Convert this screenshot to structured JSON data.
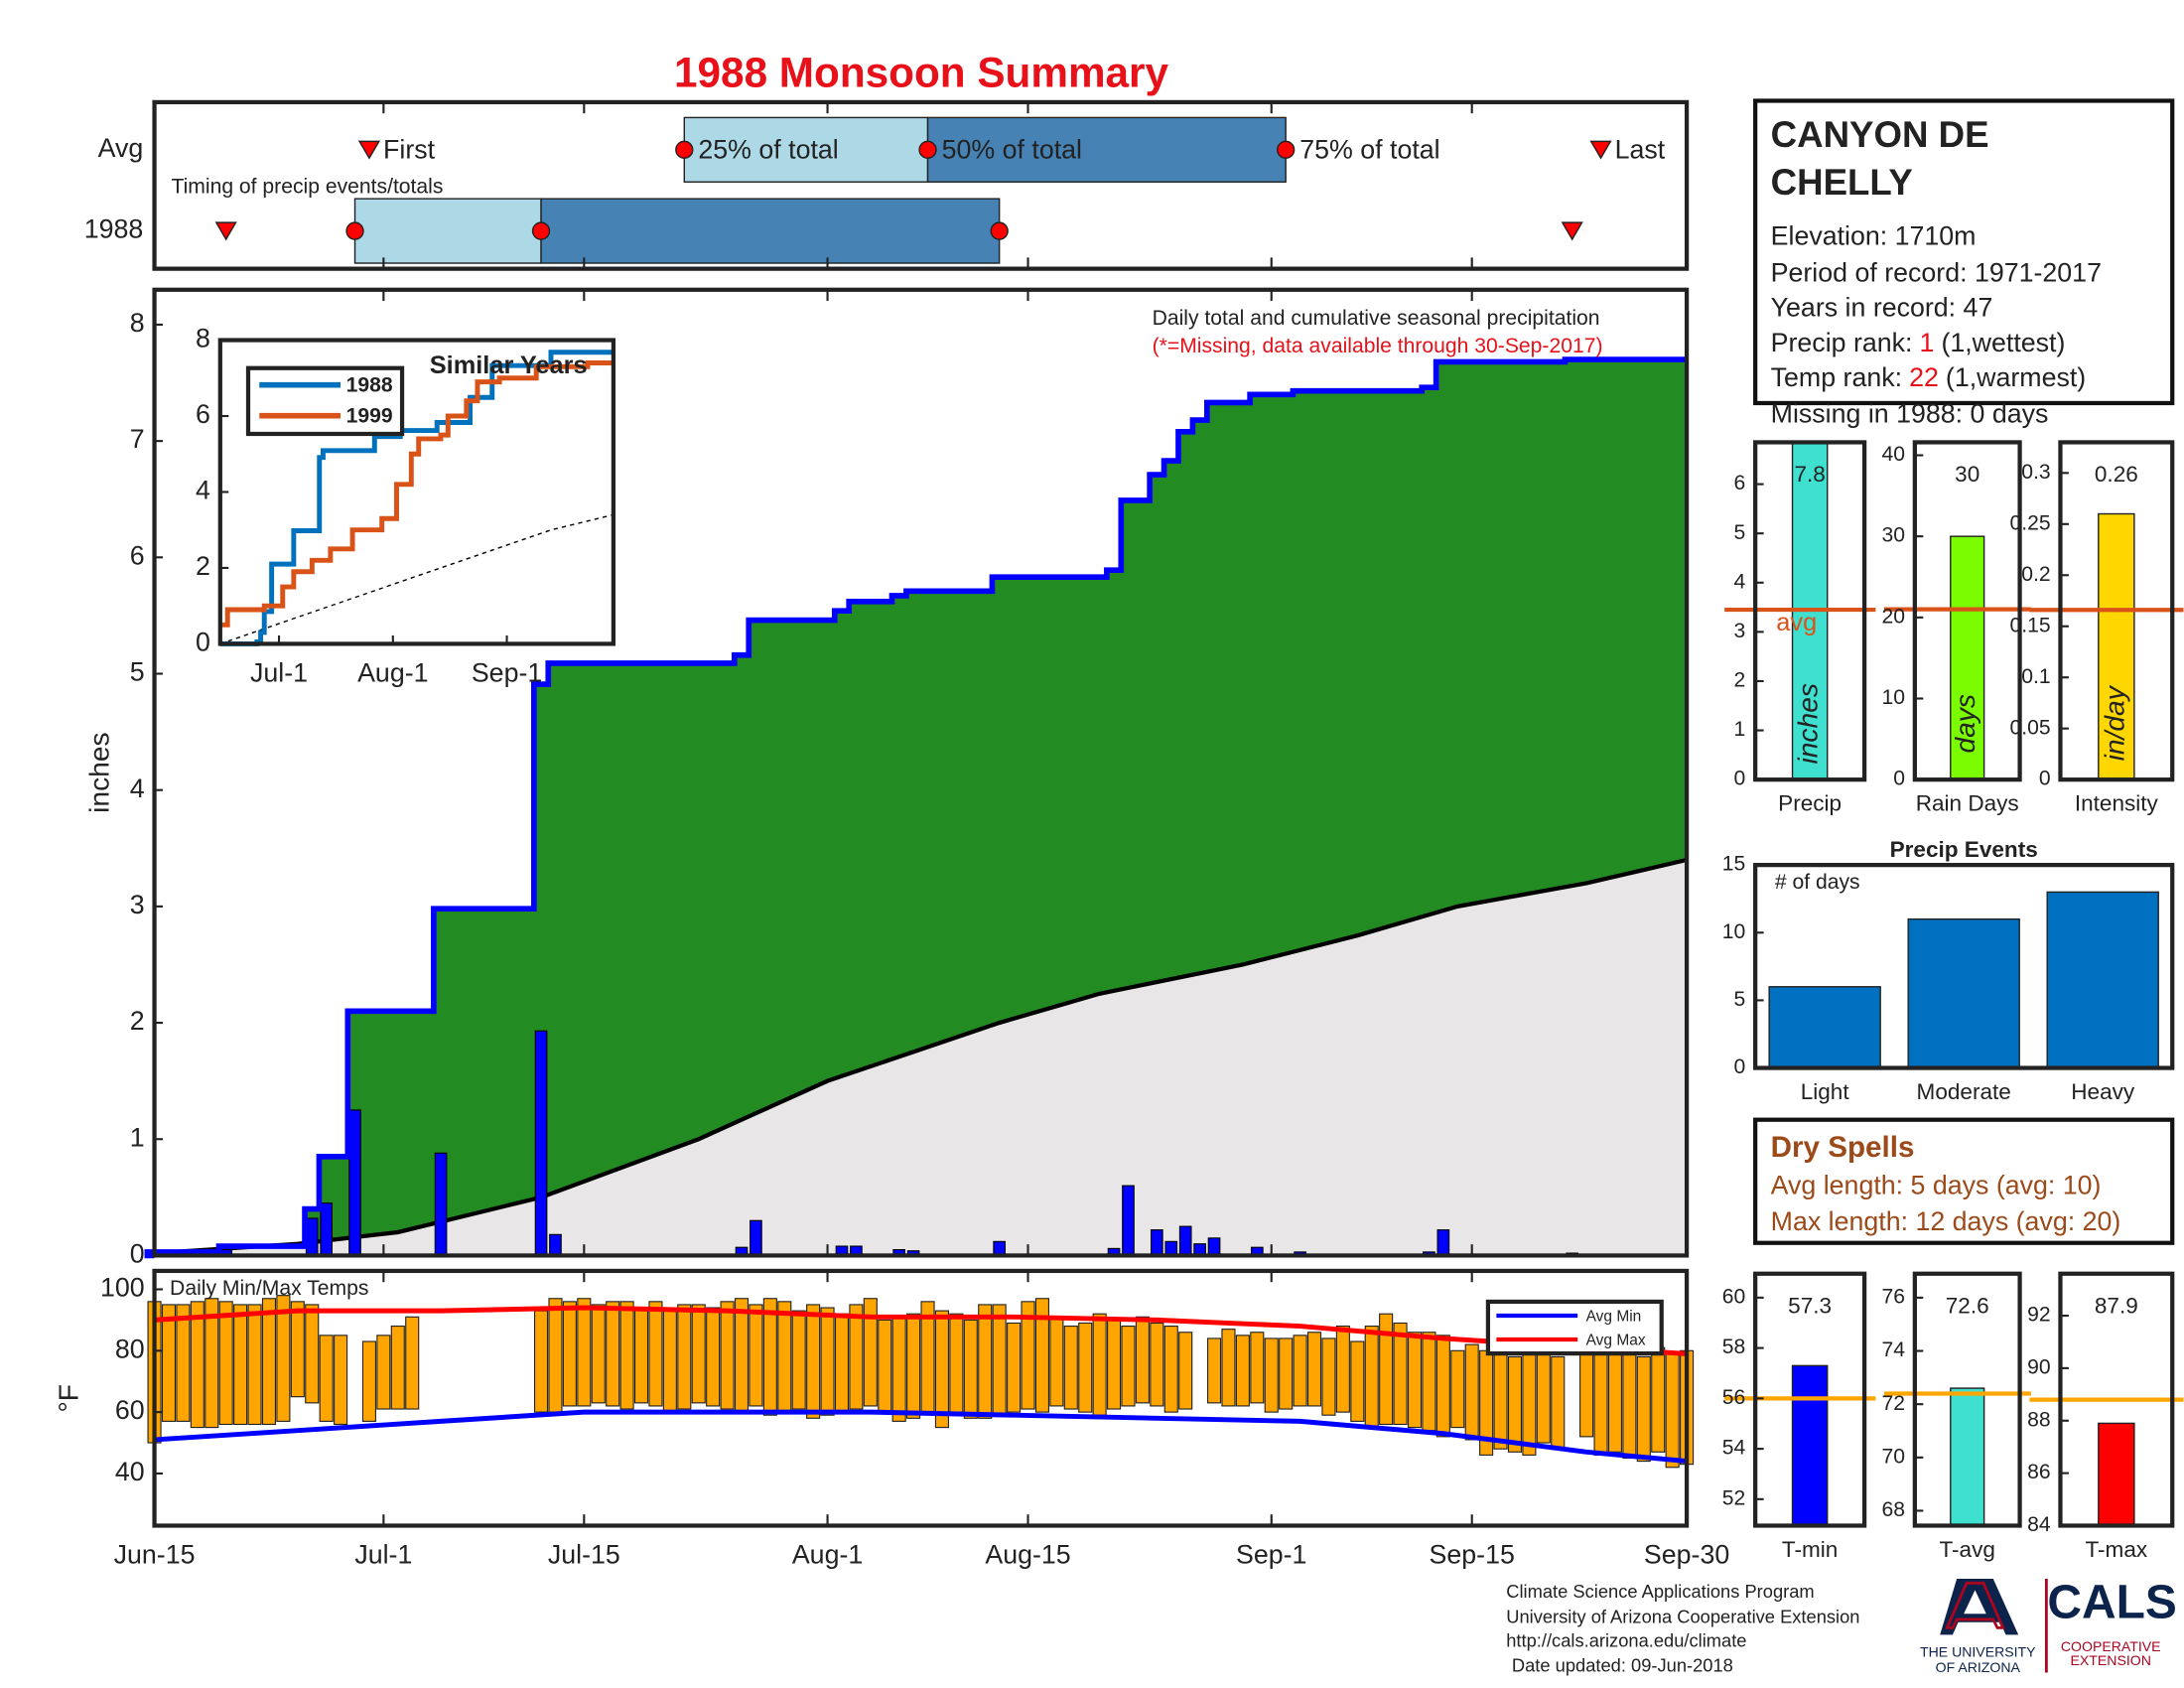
{
  "title": "1988 Monsoon Summary",
  "station": {
    "name": [
      "CANYON DE",
      "CHELLY"
    ],
    "elevation": "Elevation: 1710m",
    "period": "Period of record: 1971-2017",
    "years": "Years in record: 47",
    "precip_rank": {
      "label": "Precip rank:",
      "rank": "1",
      "note": "(1,wettest)"
    },
    "temp_rank": {
      "label": "Temp rank:",
      "rank": "22",
      "note": "(1,warmest)"
    },
    "missing": "Missing in 1988: 0 days"
  },
  "dry_spells": {
    "title": "Dry Spells",
    "lines": [
      "Avg length: 5 days (avg: 10)",
      "Max length: 12 days (avg: 20)"
    ]
  },
  "footer": [
    "Climate Science Applications Program",
    "University of Arizona Cooperative Extension",
    "http://cals.arizona.edu/climate",
    "Date updated: 09-Jun-2018"
  ],
  "logos": {
    "university": [
      "THE UNIVERSITY",
      "OF ARIZONA"
    ],
    "cals": "CALS",
    "extension": [
      "COOPERATIVE",
      "EXTENSION"
    ]
  },
  "chart_data": [
    {
      "type": "timing",
      "title": "Timing of precip events/totals",
      "xlim": [
        0,
        107
      ],
      "labels": {
        "first": "First",
        "p25": "25% of total",
        "p50": "50% of total",
        "p75": "75% of total",
        "last": "Last"
      },
      "rows": [
        {
          "label": "Avg",
          "first": 15,
          "p25": 37,
          "p50": 54,
          "p75": 79,
          "last": 101
        },
        {
          "label": "1988",
          "first": 5,
          "p25": 14,
          "p50": 27,
          "p75": 59,
          "last": 99
        }
      ],
      "colors": {
        "light": "#add8e6",
        "dark": "#4682b4",
        "marker": "#ff0000"
      }
    },
    {
      "type": "precip",
      "title": "Daily total and cumulative seasonal precipitation",
      "subtitle": "(*=Missing, data available through 30-Sep-2017)",
      "ylabel": "inches",
      "xlim": [
        0,
        107
      ],
      "ylim": [
        0,
        8.3
      ],
      "yticks": [
        0,
        1,
        2,
        3,
        4,
        5,
        6,
        7,
        8
      ],
      "daily": {
        "color": "#0000ff",
        "x": [
          0,
          5,
          11,
          12,
          14,
          20,
          27,
          28,
          41,
          42,
          48,
          49,
          52,
          53,
          59,
          67,
          68,
          70,
          71,
          72,
          73,
          74,
          77,
          80,
          89,
          90,
          99
        ],
        "values": [
          0.03,
          0.05,
          0.32,
          0.45,
          1.25,
          0.88,
          1.93,
          0.18,
          0.07,
          0.3,
          0.08,
          0.08,
          0.05,
          0.04,
          0.12,
          0.06,
          0.6,
          0.22,
          0.12,
          0.25,
          0.1,
          0.15,
          0.07,
          0.03,
          0.03,
          0.22,
          0.02
        ]
      },
      "cumulative_color": "#0000ff",
      "above_color": "#228b22",
      "average": {
        "color": "#000000",
        "fill": "#e8e6e6",
        "x": [
          0,
          10,
          17,
          27,
          38,
          47,
          53,
          59,
          66,
          76,
          84,
          91,
          100,
          107
        ],
        "values": [
          0.02,
          0.1,
          0.2,
          0.5,
          1.0,
          1.5,
          1.75,
          2.0,
          2.25,
          2.5,
          2.75,
          3.0,
          3.2,
          3.4
        ]
      }
    },
    {
      "type": "line",
      "title": "Similar Years",
      "xlim": [
        0,
        107
      ],
      "ylim": [
        0,
        8
      ],
      "yticks": [
        0,
        2,
        4,
        6,
        8
      ],
      "xticks": [
        {
          "value": 16,
          "label": "Jul-1"
        },
        {
          "value": 47,
          "label": "Aug-1"
        },
        {
          "value": 78,
          "label": "Sep-1"
        }
      ],
      "series": [
        {
          "name": "1988",
          "color": "#0072bd",
          "x": [
            0,
            10,
            11,
            12,
            14,
            20,
            27,
            28,
            42,
            49,
            59,
            68,
            74,
            90
          ],
          "values": [
            0,
            0.05,
            0.3,
            0.85,
            2.1,
            2.98,
            4.91,
            5.09,
            5.46,
            5.62,
            5.83,
            6.49,
            7.33,
            7.68
          ]
        },
        {
          "name": "1999",
          "color": "#d95319",
          "x": [
            0,
            2,
            12,
            17,
            20,
            25,
            30,
            36,
            44,
            48,
            52,
            54,
            60,
            62,
            67,
            70,
            76,
            86,
            100
          ],
          "values": [
            0.5,
            0.9,
            1.0,
            1.5,
            1.9,
            2.2,
            2.5,
            3.0,
            3.3,
            4.2,
            5.0,
            5.4,
            5.5,
            6.0,
            6.4,
            6.9,
            7.0,
            7.3,
            7.4
          ]
        }
      ],
      "reference": {
        "color": "#000000",
        "x": [
          0,
          30,
          60,
          90,
          107
        ],
        "values": [
          0,
          1.0,
          2.0,
          3.0,
          3.4
        ]
      }
    },
    {
      "type": "gauge",
      "category": "Precip",
      "value": 7.8,
      "unit": "inches",
      "avg": 3.45,
      "avg_label": "avg",
      "avg_color": "#d95319",
      "color": "#40e0d0",
      "ylim": [
        0,
        6.85
      ],
      "yticks": [
        0,
        1,
        2,
        3,
        4,
        5,
        6
      ]
    },
    {
      "type": "gauge",
      "category": "Rain Days",
      "value": 30,
      "unit": "days",
      "avg": 21,
      "avg_color": "#d95319",
      "color": "#7cfc00",
      "ylim": [
        0,
        41.6
      ],
      "yticks": [
        0,
        10,
        20,
        30,
        40
      ]
    },
    {
      "type": "gauge",
      "category": "Intensity",
      "value": 0.26,
      "unit": "in/day",
      "avg": 0.166,
      "avg_color": "#d95319",
      "color": "#ffd700",
      "ylim": [
        0,
        0.33
      ],
      "yticks": [
        0,
        0.05,
        0.1,
        0.15,
        0.2,
        0.25,
        0.3
      ]
    },
    {
      "type": "bar",
      "title": "Precip Events",
      "annotation": "# of days",
      "categories": [
        "Light",
        "Moderate",
        "Heavy"
      ],
      "values": [
        6,
        11,
        13
      ],
      "color": "#0070c0",
      "ylim": [
        0,
        15
      ],
      "yticks": [
        0,
        5,
        10,
        15
      ]
    },
    {
      "type": "minmax",
      "title": "Daily Min/Max Temps",
      "ylabel": "°F",
      "color": "#ffa500",
      "xlim": [
        0,
        107
      ],
      "ylim": [
        23,
        106
      ],
      "yticks": [
        40,
        60,
        80,
        100
      ],
      "xticks": [
        {
          "value": 0,
          "label": "Jun-15"
        },
        {
          "value": 16,
          "label": "Jul-1"
        },
        {
          "value": 30,
          "label": "Jul-15"
        },
        {
          "value": 47,
          "label": "Aug-1"
        },
        {
          "value": 61,
          "label": "Aug-15"
        },
        {
          "value": 78,
          "label": "Sep-1"
        },
        {
          "value": 92,
          "label": "Sep-15"
        },
        {
          "value": 107,
          "label": "Sep-30"
        }
      ],
      "x": [
        0,
        1,
        2,
        3,
        4,
        5,
        6,
        7,
        8,
        9,
        10,
        11,
        12,
        13,
        14,
        15,
        16,
        17,
        18,
        19,
        20,
        21,
        22,
        23,
        24,
        25,
        26,
        27,
        28,
        29,
        30,
        31,
        32,
        33,
        34,
        35,
        36,
        37,
        38,
        39,
        40,
        41,
        42,
        43,
        44,
        45,
        46,
        47,
        48,
        49,
        50,
        51,
        52,
        53,
        54,
        55,
        56,
        57,
        58,
        59,
        60,
        61,
        62,
        63,
        64,
        65,
        66,
        67,
        68,
        69,
        70,
        71,
        72,
        73,
        74,
        75,
        76,
        77,
        78,
        79,
        80,
        81,
        82,
        83,
        84,
        85,
        86,
        87,
        88,
        89,
        90,
        91,
        92,
        93,
        94,
        95,
        96,
        97,
        98,
        99,
        100,
        101,
        102,
        103,
        104,
        105,
        106,
        107
      ],
      "max": [
        96,
        95,
        95,
        96,
        97,
        96,
        95,
        95,
        97,
        98,
        96,
        95,
        85,
        85,
        null,
        83,
        85,
        88,
        91,
        null,
        null,
        null,
        null,
        null,
        null,
        null,
        null,
        93,
        97,
        96,
        97,
        95,
        96,
        96,
        94,
        96,
        93,
        95,
        95,
        94,
        96,
        97,
        95,
        97,
        96,
        93,
        95,
        94,
        92,
        95,
        97,
        90,
        91,
        92,
        96,
        93,
        92,
        90,
        95,
        95,
        89,
        96,
        97,
        91,
        88,
        89,
        92,
        90,
        88,
        91,
        89,
        88,
        86,
        null,
        84,
        87,
        85,
        86,
        84,
        84,
        85,
        86,
        84,
        88,
        83,
        88,
        92,
        89,
        86,
        86,
        85,
        80,
        82,
        80,
        79,
        78,
        81,
        80,
        78,
        null,
        82,
        80,
        79,
        80,
        78,
        81,
        79,
        80
      ],
      "min": [
        50,
        57,
        57,
        55,
        55,
        56,
        56,
        56,
        56,
        57,
        65,
        63,
        57,
        56,
        null,
        57,
        61,
        61,
        61,
        null,
        null,
        null,
        null,
        null,
        null,
        null,
        null,
        60,
        60,
        62,
        62,
        63,
        62,
        61,
        63,
        62,
        60,
        61,
        63,
        62,
        61,
        60,
        62,
        59,
        60,
        61,
        58,
        59,
        60,
        61,
        62,
        60,
        57,
        58,
        60,
        55,
        60,
        58,
        58,
        59,
        60,
        61,
        60,
        62,
        61,
        60,
        59,
        61,
        62,
        63,
        62,
        60,
        61,
        null,
        63,
        62,
        62,
        63,
        60,
        61,
        62,
        62,
        59,
        60,
        57,
        55,
        56,
        56,
        55,
        54,
        52,
        55,
        51,
        46,
        48,
        47,
        46,
        50,
        48,
        null,
        52,
        46,
        47,
        45,
        44,
        47,
        42,
        43
      ],
      "series": [
        {
          "name": "Avg Min",
          "color": "#0000ff",
          "x": [
            0,
            10,
            20,
            30,
            40,
            50,
            60,
            70,
            80,
            90,
            100,
            107
          ],
          "values": [
            51,
            54,
            57,
            60,
            60,
            60,
            59,
            58,
            57,
            53,
            47,
            44
          ]
        },
        {
          "name": "Avg Max",
          "color": "#ff0000",
          "x": [
            0,
            10,
            20,
            30,
            40,
            50,
            60,
            70,
            80,
            90,
            100,
            107
          ],
          "values": [
            90,
            93,
            93,
            94,
            93,
            91,
            91,
            90,
            88,
            84,
            81,
            79
          ]
        }
      ]
    },
    {
      "type": "gauge",
      "category": "T-min",
      "value": 57.3,
      "avg": 56,
      "avg_color": "#ffa500",
      "color": "#0000ff",
      "ylim": [
        50.95,
        60.95
      ],
      "yticks": [
        52,
        54,
        56,
        58,
        60
      ]
    },
    {
      "type": "gauge",
      "category": "T-avg",
      "value": 72.6,
      "avg": 72.4,
      "avg_color": "#ffa500",
      "color": "#40e0d0",
      "ylim": [
        67.44,
        76.9
      ],
      "yticks": [
        68,
        70,
        72,
        74,
        76
      ]
    },
    {
      "type": "gauge",
      "category": "T-max",
      "value": 87.9,
      "avg": 88.8,
      "avg_color": "#ffa500",
      "color": "#ff0000",
      "ylim": [
        84,
        93.6
      ],
      "yticks": [
        84,
        86,
        88,
        90,
        92
      ]
    }
  ]
}
